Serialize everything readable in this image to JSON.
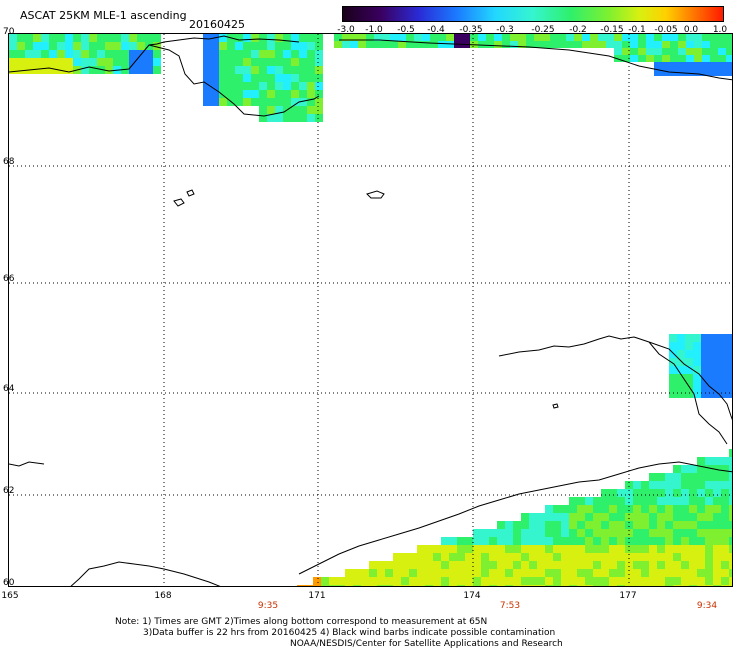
{
  "header": {
    "title": "ASCAT 25KM MLE-1 ascending",
    "date": "20160425"
  },
  "colorbar": {
    "labels": [
      "-3.0",
      "-1.0",
      "-0.5",
      "-0.4",
      "-0.35",
      "-0.3",
      "-0.25",
      "-0.2",
      "-0.15",
      "-0.1",
      "-0.05",
      "0.0",
      "1.0"
    ]
  },
  "map": {
    "lat_labels": [
      "70",
      "68",
      "66",
      "64",
      "62",
      "60"
    ],
    "lon_labels": [
      "165",
      "168",
      "171",
      "174",
      "177"
    ],
    "pass_times": [
      "9:35",
      "7:53",
      "9:34"
    ],
    "colors": {
      "green": "#2ff06a",
      "light_green": "#7ff02f",
      "cyan": "#35f5cf",
      "light_cyan": "#22f0ff",
      "blue": "#1b7bff",
      "deep_blue": "#2a2bd6",
      "purple": "#3a0060",
      "yellow": "#d8f010",
      "orange": "#ff9a00",
      "time_label": "#c83200"
    }
  },
  "footer": {
    "line1": "Note: 1) Times are GMT 2)Times along bottom correspond to measurement at 65N",
    "line2": "3)Data buffer is 22 hrs from 20160425 4) Black wind barbs indicate possible contamination",
    "line3": "NOAA/NESDIS/Center for Satellite Applications and Research"
  }
}
